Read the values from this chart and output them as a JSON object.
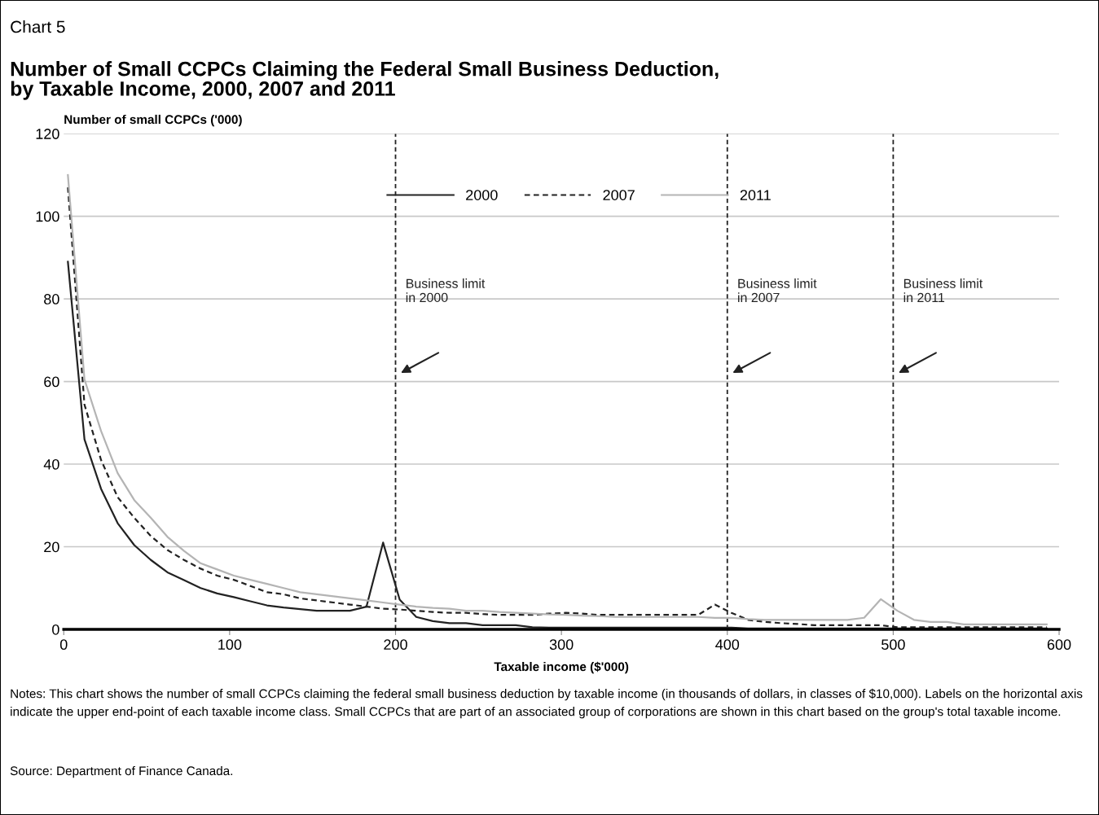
{
  "chart_data": {
    "type": "line",
    "title": "Number of Small CCPCs Claiming the Federal Small Business Deduction,\nby Taxable Income, 2000, 2007 and 2011",
    "ylabel": "Number of small CCPCs ('000)",
    "xlabel": "Taxable income ($'000)",
    "x": [
      2.5,
      12.5,
      22.5,
      32.5,
      42.5,
      52.5,
      62.5,
      72.5,
      82.5,
      92.5,
      102.5,
      112.5,
      122.5,
      132.5,
      142.5,
      152.5,
      162.5,
      172.5,
      182.5,
      192.5,
      202.5,
      212.5,
      222.5,
      232.5,
      242.5,
      252.5,
      262.5,
      272.5,
      282.5,
      292.5,
      302.5,
      312.5,
      322.5,
      332.5,
      342.5,
      352.5,
      362.5,
      372.5,
      382.5,
      392.5,
      402.5,
      412.5,
      422.5,
      432.5,
      442.5,
      452.5,
      462.5,
      472.5,
      482.5,
      492.5,
      502.5,
      512.5,
      522.5,
      532.5,
      542.5,
      552.5,
      562.5,
      572.5,
      582.5,
      592.5
    ],
    "series": [
      {
        "name": "2000",
        "color": "#222222",
        "line_style": "solid",
        "values": [
          89,
          46,
          34,
          25.7,
          20.4,
          16.8,
          13.8,
          11.9,
          10,
          8.7,
          7.8,
          6.8,
          5.8,
          5.3,
          4.9,
          4.5,
          4.5,
          4.5,
          5.5,
          21,
          7.2,
          3,
          2,
          1.5,
          1.5,
          1,
          1,
          1,
          0.5,
          0.4,
          0.4,
          0.4,
          0.4,
          0.4,
          0.4,
          0.4,
          0.4,
          0.4,
          0.4,
          0.4,
          0.4,
          0.2,
          0.2,
          0.2,
          0.2,
          0.2,
          0.2,
          0.2,
          0.2,
          0.2,
          0.2,
          0.2,
          0.2,
          0.2,
          0.2,
          0.2,
          0.2,
          0.2,
          0.2,
          0.2
        ]
      },
      {
        "name": "2007",
        "color": "#222222",
        "line_style": "dashed",
        "values": [
          107,
          54.4,
          41,
          32,
          27,
          22.6,
          19.2,
          16.8,
          14.7,
          13,
          12,
          10.5,
          9,
          8.5,
          7.5,
          7,
          6.5,
          6,
          5.5,
          5,
          4.8,
          4.5,
          4.2,
          4,
          4,
          3.7,
          3.5,
          3.5,
          3.5,
          3.8,
          4,
          3.8,
          3.5,
          3.5,
          3.5,
          3.5,
          3.5,
          3.5,
          3.5,
          6,
          4,
          2.3,
          1.8,
          1.5,
          1.3,
          1,
          1,
          1,
          1,
          1,
          0.5,
          0.5,
          0.5,
          0.5,
          0.5,
          0.5,
          0.5,
          0.5,
          0.5,
          0.5
        ]
      },
      {
        "name": "2011",
        "color": "#b4b4b4",
        "line_style": "solid",
        "values": [
          110,
          60.5,
          48,
          37.8,
          31.3,
          27,
          22.4,
          19,
          16,
          14.5,
          13,
          12,
          11,
          10,
          9,
          8.5,
          8,
          7.5,
          7,
          6.5,
          6,
          5.5,
          5.2,
          5,
          4.5,
          4.5,
          4.2,
          4,
          3.8,
          3.6,
          3.5,
          3.3,
          3.2,
          3,
          3,
          3,
          3,
          3,
          3,
          2.8,
          2.8,
          2.5,
          2.3,
          2.3,
          2.3,
          2.3,
          2.3,
          2.3,
          2.8,
          7.3,
          4.5,
          2.3,
          1.8,
          1.8,
          1.2,
          1.2,
          1.2,
          1.2,
          1.2,
          1.2
        ]
      }
    ],
    "xlim": [
      0,
      600
    ],
    "xticks": [
      0,
      100,
      200,
      300,
      400,
      500,
      600
    ],
    "ylim": [
      0,
      120
    ],
    "yticks": [
      0,
      20,
      40,
      60,
      80,
      100,
      120
    ],
    "grid": "y",
    "legend": "top",
    "marker": "none",
    "ref_lines": [
      {
        "axis": "x",
        "value": 200,
        "label": "Business limit\nin 2000",
        "color": "#222222",
        "line_style": "dashed"
      },
      {
        "axis": "x",
        "value": 400,
        "label": "Business limit\nin 2007",
        "color": "#222222",
        "line_style": "dashed"
      },
      {
        "axis": "x",
        "value": 500,
        "label": "Business limit\nin 2011",
        "color": "#222222",
        "line_style": "dashed"
      }
    ],
    "annotations": [
      "Chart 5",
      "Notes: This chart shows the number of small CCPCs claiming the federal small business deduction by taxable income (in thousands of dollars, in classes of $10,000). Labels on the horizontal axis indicate the upper end-point of each taxable income class. Small CCPCs that are part of an associated group of corporations are shown in this chart based on the group's total taxable income.",
      "Source: Department of Finance Canada."
    ]
  }
}
